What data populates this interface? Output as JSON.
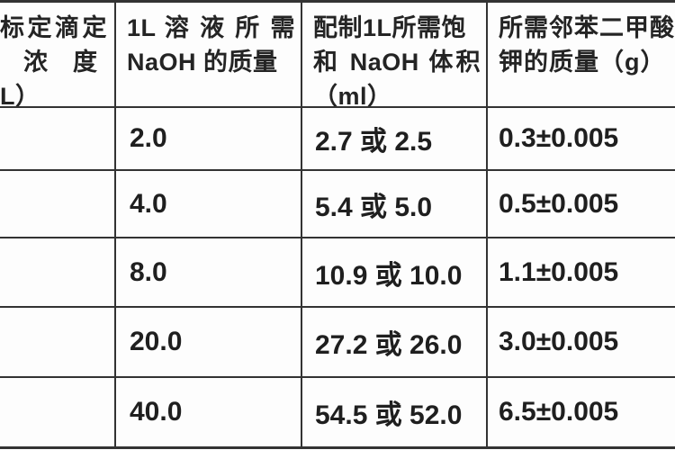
{
  "table": {
    "title_hint": "NaOH titration solution preparation table (cropped at left and right edges)",
    "colors": {
      "border": "#333333",
      "text": "#1f1f1f",
      "background": "#ffffff"
    },
    "header": {
      "col1": {
        "line1": "标定滴定",
        "line2": "浓　度",
        "line3": "L）"
      },
      "col2": {
        "line1": "1L 溶 液 所 需",
        "line2": "NaOH 的质量"
      },
      "col3": {
        "line1": "配制1L所需饱",
        "line2": "和 NaOH 体积",
        "line3": "（ml）"
      },
      "col4": {
        "line1": "所需邻苯二甲酸",
        "line2": "钾的质量（g）"
      }
    },
    "rows": [
      {
        "c1": "",
        "c2": "2.0",
        "c3": "2.7 或 2.5",
        "c4": "0.3±0.005"
      },
      {
        "c1": "",
        "c2": "4.0",
        "c3": "5.4 或 5.0",
        "c4": "0.5±0.005"
      },
      {
        "c1": "",
        "c2": "8.0",
        "c3": "10.9 或 10.0",
        "c4": "1.1±0.005"
      },
      {
        "c1": "",
        "c2": "20.0",
        "c3": "27.2 或 26.0",
        "c4": "3.0±0.005"
      },
      {
        "c1": "",
        "c2": "40.0",
        "c3": "54.5 或 52.0",
        "c4": "6.5±0.005"
      }
    ]
  }
}
